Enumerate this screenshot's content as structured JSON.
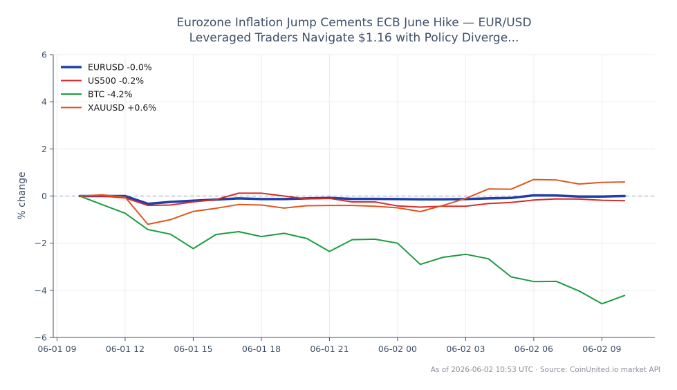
{
  "chart_data": {
    "type": "line",
    "title": "Eurozone Inflation Jump Cements ECB June Hike — EUR/USD Leveraged Traders Navigate $1.16 with Policy Diverge...",
    "title_lines": [
      "Eurozone Inflation Jump Cements ECB June Hike — EUR/USD",
      "Leveraged Traders Navigate $1.16 with Policy Diverge..."
    ],
    "xlabel": "",
    "ylabel": "% change",
    "ylim": [
      -6,
      6
    ],
    "yticks": [
      -6,
      -4,
      -2,
      0,
      2,
      4,
      6
    ],
    "ytick_labels": [
      "−6",
      "−4",
      "−2",
      "0",
      "2",
      "4",
      "6"
    ],
    "xlim": [
      "2026-06-01 08:50",
      "2026-06-02 11:20"
    ],
    "xticks": [
      "2026-06-01 09:00",
      "2026-06-01 12:00",
      "2026-06-01 15:00",
      "2026-06-01 18:00",
      "2026-06-01 21:00",
      "2026-06-02 00:00",
      "2026-06-02 03:00",
      "2026-06-02 06:00",
      "2026-06-02 09:00"
    ],
    "xtick_labels": [
      "06-01 09",
      "06-01 12",
      "06-01 15",
      "06-01 18",
      "06-01 21",
      "06-02 00",
      "06-02 03",
      "06-02 06",
      "06-02 09"
    ],
    "grid": true,
    "zero_line": true,
    "legend_position": "top-left",
    "x": [
      "2026-06-01 10:00",
      "2026-06-01 11:00",
      "2026-06-01 12:00",
      "2026-06-01 13:00",
      "2026-06-01 14:00",
      "2026-06-01 15:00",
      "2026-06-01 16:00",
      "2026-06-01 17:00",
      "2026-06-01 18:00",
      "2026-06-01 19:00",
      "2026-06-01 20:00",
      "2026-06-01 21:00",
      "2026-06-01 22:00",
      "2026-06-01 23:00",
      "2026-06-02 00:00",
      "2026-06-02 01:00",
      "2026-06-02 02:00",
      "2026-06-02 03:00",
      "2026-06-02 04:00",
      "2026-06-02 05:00",
      "2026-06-02 06:00",
      "2026-06-02 07:00",
      "2026-06-02 08:00",
      "2026-06-02 09:00",
      "2026-06-02 10:00"
    ],
    "series": [
      {
        "name": "EURUSD -0.0%",
        "color": "#1f3fa8",
        "width": 3.5,
        "values": [
          0.0,
          0.0,
          0.0,
          -0.33,
          -0.25,
          -0.2,
          -0.15,
          -0.1,
          -0.13,
          -0.13,
          -0.1,
          -0.08,
          -0.12,
          -0.12,
          -0.13,
          -0.14,
          -0.14,
          -0.13,
          -0.1,
          -0.08,
          0.03,
          0.02,
          -0.02,
          -0.02,
          0.0
        ]
      },
      {
        "name": "US500 -0.2%",
        "color": "#d62a28",
        "width": 2,
        "values": [
          0.0,
          0.0,
          -0.08,
          -0.4,
          -0.38,
          -0.25,
          -0.15,
          0.12,
          0.12,
          0.0,
          -0.12,
          -0.1,
          -0.25,
          -0.25,
          -0.42,
          -0.47,
          -0.43,
          -0.43,
          -0.32,
          -0.27,
          -0.17,
          -0.12,
          -0.13,
          -0.18,
          -0.2
        ]
      },
      {
        "name": "BTC -4.2%",
        "color": "#1a9c3e",
        "width": 2,
        "values": [
          0.0,
          -0.37,
          -0.73,
          -1.42,
          -1.62,
          -2.23,
          -1.63,
          -1.51,
          -1.72,
          -1.58,
          -1.8,
          -2.35,
          -1.85,
          -1.83,
          -2.0,
          -2.9,
          -2.6,
          -2.47,
          -2.66,
          -3.43,
          -3.63,
          -3.62,
          -4.03,
          -4.57,
          -4.22
        ]
      },
      {
        "name": "XAUUSD +0.6%",
        "color": "#e0561c",
        "width": 2,
        "values": [
          0.0,
          0.05,
          -0.05,
          -1.2,
          -1.0,
          -0.65,
          -0.52,
          -0.36,
          -0.38,
          -0.51,
          -0.41,
          -0.4,
          -0.4,
          -0.43,
          -0.5,
          -0.66,
          -0.4,
          -0.1,
          0.3,
          0.29,
          0.7,
          0.68,
          0.51,
          0.58,
          0.6
        ]
      }
    ]
  },
  "footnote": "As of 2026-06-02 10:53 UTC · Source: CoinUnited.io market API",
  "colors": {
    "axis": "#3d4f66",
    "grid": "#ececec",
    "zero_line": "#8a9ab8",
    "footnote": "#8a8f99"
  }
}
